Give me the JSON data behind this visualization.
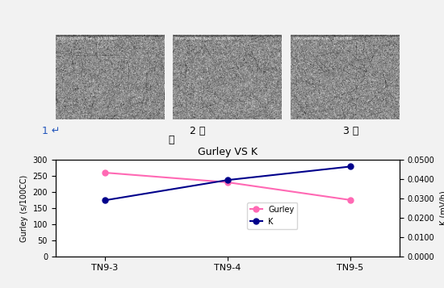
{
  "title": "Gurley VS K",
  "x_labels": [
    "TN9-3",
    "TN9-4",
    "TN9-5"
  ],
  "gurley_values": [
    260,
    230,
    175
  ],
  "k_values": [
    0.029,
    0.0395,
    0.0465
  ],
  "gurley_color": "#FF69B4",
  "k_color": "#00008B",
  "ylabel_left": "Gurley (s/100CC)",
  "ylabel_right": "K (mV/h)",
  "ylim_left": [
    0,
    300
  ],
  "ylim_right": [
    0.0,
    0.05
  ],
  "yticks_left": [
    0,
    50,
    100,
    150,
    200,
    250,
    300
  ],
  "yticks_right": [
    0.0,
    0.01,
    0.02,
    0.03,
    0.04,
    0.05
  ],
  "ytick_labels_right": [
    "0.0000",
    "0.0100",
    "0.0200",
    "0.0300",
    "0.0400",
    "0.0500"
  ],
  "bg_color": "#FFFFFF",
  "outer_bg": "#F2F2F2",
  "img_bg_color": "#C8C8C8"
}
